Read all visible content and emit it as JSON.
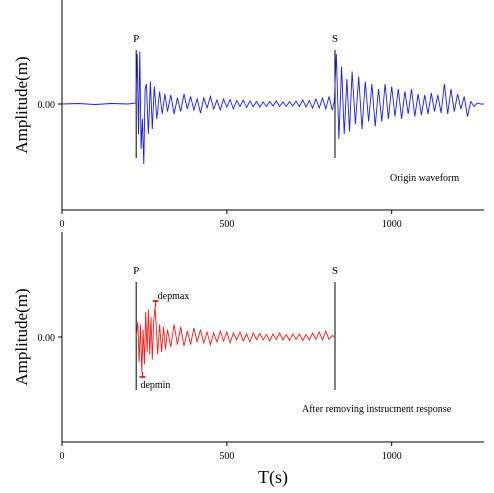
{
  "chart_data": [
    {
      "type": "line",
      "ylabel": "Amplitude(m)",
      "y_tick_labels": [
        "0.00"
      ],
      "x_tick_labels": [
        "0",
        "500",
        "1000"
      ],
      "xlim": [
        0,
        1280
      ],
      "ylim": [
        -1.65,
        1.65
      ],
      "phase_labels": {
        "p": "P",
        "s": "S"
      },
      "p_arrival": 225,
      "s_arrival": 828,
      "annotation": "Origin waveform",
      "color": "#1a1aff",
      "series": [
        {
          "x": [
            0,
            50,
            100,
            150,
            200,
            224,
            228,
            232,
            236,
            240,
            244,
            248,
            252,
            256,
            262,
            268,
            274,
            280,
            288,
            296,
            304,
            312,
            320,
            330,
            340,
            350,
            360,
            370,
            380,
            390,
            400,
            410,
            420,
            430,
            440,
            450,
            460,
            470,
            480,
            490,
            500,
            510,
            520,
            530,
            540,
            550,
            560,
            570,
            580,
            590,
            600,
            610,
            620,
            630,
            640,
            650,
            660,
            670,
            680,
            690,
            700,
            710,
            720,
            730,
            740,
            750,
            760,
            770,
            780,
            790,
            800,
            810,
            820,
            826,
            832,
            840,
            848,
            856,
            864,
            872,
            880,
            890,
            900,
            910,
            920,
            930,
            940,
            950,
            960,
            970,
            980,
            990,
            1000,
            1010,
            1020,
            1030,
            1040,
            1050,
            1060,
            1070,
            1080,
            1090,
            1100,
            1110,
            1120,
            1130,
            1140,
            1150,
            1160,
            1170,
            1180,
            1190,
            1200,
            1210,
            1220,
            1230,
            1240,
            1250,
            1260,
            1270,
            1280
          ],
          "y": [
            0,
            0.01,
            -0.01,
            0.01,
            0,
            0.02,
            1.0,
            -0.6,
            1.05,
            -0.9,
            -0.3,
            -1.2,
            0.3,
            0.4,
            -0.6,
            0.45,
            -0.5,
            0.35,
            -0.3,
            0.25,
            -0.2,
            0.2,
            -0.15,
            0.18,
            -0.2,
            0.12,
            -0.15,
            0.2,
            -0.1,
            0.15,
            -0.12,
            0.1,
            -0.18,
            0.12,
            -0.08,
            0.15,
            -0.1,
            0.08,
            -0.12,
            0.1,
            -0.06,
            0.09,
            -0.1,
            0.07,
            -0.05,
            0.08,
            -0.07,
            0.06,
            -0.05,
            0.05,
            -0.06,
            0.04,
            -0.05,
            0.05,
            -0.04,
            0.06,
            -0.05,
            0.04,
            -0.05,
            0.05,
            -0.04,
            0.06,
            -0.05,
            0.08,
            -0.06,
            0.07,
            -0.08,
            0.1,
            -0.08,
            0.12,
            -0.1,
            0.15,
            -0.12,
            0.05,
            1.0,
            -0.7,
            0.75,
            -0.6,
            0.5,
            -0.55,
            0.65,
            -0.4,
            0.55,
            -0.5,
            0.45,
            -0.35,
            0.4,
            -0.45,
            0.3,
            -0.35,
            0.4,
            -0.3,
            0.35,
            -0.25,
            0.3,
            -0.3,
            0.25,
            -0.2,
            0.3,
            -0.25,
            0.2,
            -0.22,
            0.18,
            -0.2,
            0.22,
            -0.15,
            0.18,
            -0.18,
            0.4,
            -0.2,
            0.3,
            -0.15,
            0.2,
            -0.1,
            0.15,
            -0.25,
            0.05,
            -0.05,
            0.02,
            0,
            0
          ]
        }
      ]
    },
    {
      "type": "line",
      "ylabel": "Amplitude(m)",
      "xlabel": "T(s)",
      "y_tick_labels": [
        "0.00"
      ],
      "x_tick_labels": [
        "0",
        "500",
        "1000"
      ],
      "xlim": [
        0,
        1280
      ],
      "ylim": [
        -1.65,
        1.65
      ],
      "phase_labels": {
        "p": "P",
        "s": "S"
      },
      "p_arrival": 225,
      "s_arrival": 828,
      "annotation": "After removing instrucment response",
      "depmax_label": "depmax",
      "depmin_label": "depmin",
      "depmax_time": 284,
      "depmin_time": 244,
      "color": "#ff1a1a",
      "series": [
        {
          "x": [
            225,
            230,
            234,
            238,
            242,
            246,
            250,
            254,
            258,
            262,
            266,
            270,
            274,
            278,
            282,
            286,
            290,
            296,
            302,
            308,
            314,
            320,
            330,
            340,
            350,
            360,
            370,
            380,
            390,
            400,
            410,
            420,
            430,
            440,
            450,
            460,
            470,
            480,
            490,
            500,
            510,
            520,
            530,
            540,
            550,
            560,
            570,
            580,
            590,
            600,
            610,
            620,
            630,
            640,
            650,
            660,
            670,
            680,
            690,
            700,
            710,
            720,
            730,
            740,
            750,
            760,
            770,
            780,
            790,
            800,
            810,
            820,
            828
          ],
          "y": [
            0,
            0.3,
            -0.5,
            0.25,
            -0.7,
            0.15,
            -0.55,
            0.5,
            -0.3,
            0.55,
            -0.35,
            0.4,
            -0.45,
            0.3,
            0.6,
            0.2,
            -0.35,
            0.25,
            -0.3,
            0.2,
            -0.25,
            0.15,
            -0.2,
            0.25,
            -0.15,
            0.2,
            -0.18,
            0.12,
            -0.15,
            0.18,
            -0.1,
            0.15,
            -0.12,
            0.1,
            -0.15,
            0.08,
            -0.1,
            0.12,
            -0.08,
            0.1,
            -0.12,
            0.08,
            -0.06,
            0.1,
            -0.08,
            0.06,
            -0.1,
            0.08,
            -0.05,
            0.07,
            -0.06,
            0.05,
            -0.08,
            0.06,
            -0.05,
            0.08,
            -0.06,
            0.05,
            -0.07,
            0.06,
            -0.05,
            0.06,
            -0.07,
            0.05,
            -0.06,
            0.08,
            -0.05,
            0.1,
            -0.06,
            0.12,
            -0.05,
            0.03,
            0
          ]
        }
      ]
    }
  ]
}
